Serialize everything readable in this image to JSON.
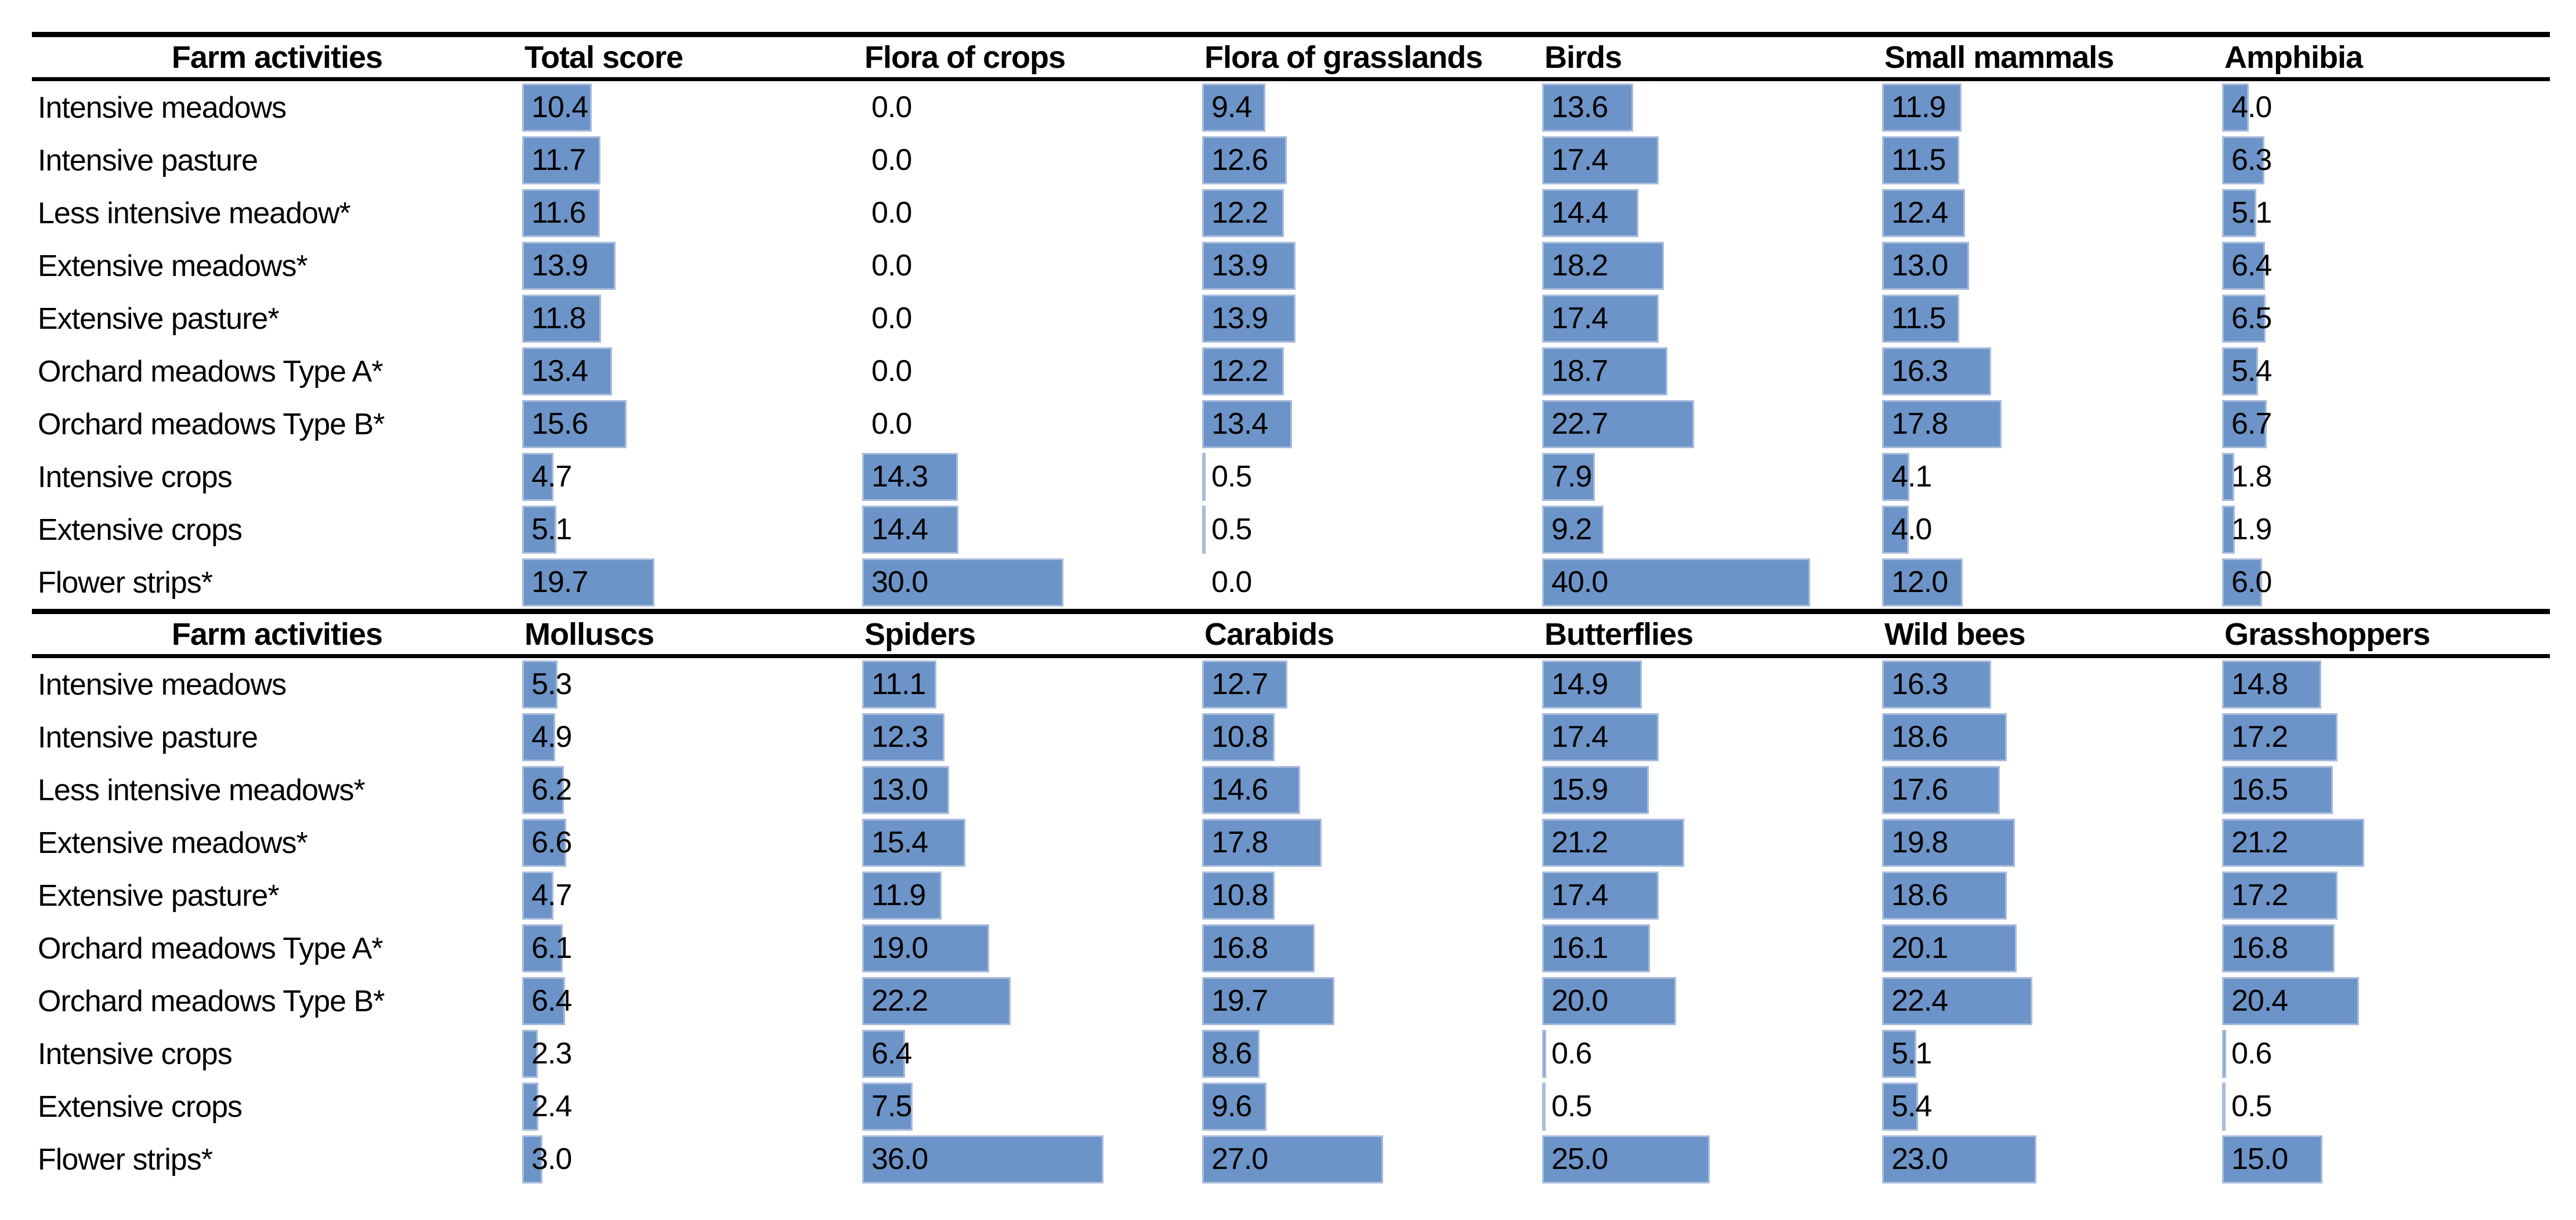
{
  "colors": {
    "bar_fill": "#6C94C8",
    "bar_border": "#A9BCDC",
    "rule": "#000000",
    "text": "#000000",
    "background": "#FFFFFF"
  },
  "chart_data": [
    {
      "type": "table",
      "row_header": "Farm activities",
      "columns": [
        "Total score",
        "Flora of crops",
        "Flora of grasslands",
        "Birds",
        "Small mammals",
        "Amphibia"
      ],
      "bar_scale_max": 40,
      "rows": [
        "Intensive meadows",
        "Intensive pasture",
        "Less intensive meadow*",
        "Extensive meadows*",
        "Extensive pasture*",
        "Orchard meadows Type A*",
        "Orchard meadows Type B*",
        "Intensive crops",
        "Extensive crops",
        "Flower strips*"
      ],
      "values": [
        [
          10.4,
          0.0,
          9.4,
          13.6,
          11.9,
          4.0
        ],
        [
          11.7,
          0.0,
          12.6,
          17.4,
          11.5,
          6.3
        ],
        [
          11.6,
          0.0,
          12.2,
          14.4,
          12.4,
          5.1
        ],
        [
          13.9,
          0.0,
          13.9,
          18.2,
          13.0,
          6.4
        ],
        [
          11.8,
          0.0,
          13.9,
          17.4,
          11.5,
          6.5
        ],
        [
          13.4,
          0.0,
          12.2,
          18.7,
          16.3,
          5.4
        ],
        [
          15.6,
          0.0,
          13.4,
          22.7,
          17.8,
          6.7
        ],
        [
          4.7,
          14.3,
          0.5,
          7.9,
          4.1,
          1.8
        ],
        [
          5.1,
          14.4,
          0.5,
          9.2,
          4.0,
          1.9
        ],
        [
          19.7,
          30.0,
          0.0,
          40.0,
          12.0,
          6.0
        ]
      ]
    },
    {
      "type": "table",
      "row_header": "Farm activities",
      "columns": [
        "Molluscs",
        "Spiders",
        "Carabids",
        "Butterflies",
        "Wild bees",
        "Grasshoppers"
      ],
      "bar_scale_max": 40,
      "rows": [
        "Intensive meadows",
        "Intensive pasture",
        "Less intensive meadows*",
        "Extensive meadows*",
        "Extensive pasture*",
        "Orchard meadows Type A*",
        "Orchard meadows Type B*",
        "Intensive crops",
        "Extensive crops",
        "Flower strips*"
      ],
      "values": [
        [
          5.3,
          11.1,
          12.7,
          14.9,
          16.3,
          14.8
        ],
        [
          4.9,
          12.3,
          10.8,
          17.4,
          18.6,
          17.2
        ],
        [
          6.2,
          13.0,
          14.6,
          15.9,
          17.6,
          16.5
        ],
        [
          6.6,
          15.4,
          17.8,
          21.2,
          19.8,
          21.2
        ],
        [
          4.7,
          11.9,
          10.8,
          17.4,
          18.6,
          17.2
        ],
        [
          6.1,
          19.0,
          16.8,
          16.1,
          20.1,
          16.8
        ],
        [
          6.4,
          22.2,
          19.7,
          20.0,
          22.4,
          20.4
        ],
        [
          2.3,
          6.4,
          8.6,
          0.6,
          5.1,
          0.6
        ],
        [
          2.4,
          7.5,
          9.6,
          0.5,
          5.4,
          0.5
        ],
        [
          3.0,
          36.0,
          27.0,
          25.0,
          23.0,
          15.0
        ]
      ]
    }
  ]
}
